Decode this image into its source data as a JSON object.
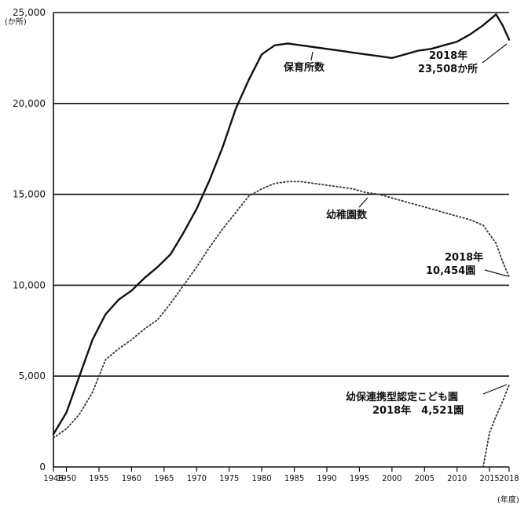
{
  "chart_data": {
    "type": "line",
    "y_unit": "(か所)",
    "x_unit": "(年度)",
    "ylim": [
      0,
      25000
    ],
    "xlim": [
      1948,
      2018
    ],
    "y_ticks": [
      "25,000",
      "20,000",
      "15,000",
      "10,000",
      "5,000",
      "0"
    ],
    "y_tick_values": [
      25000,
      20000,
      15000,
      10000,
      5000,
      0
    ],
    "x_ticks": [
      "1948",
      "1950",
      "1955",
      "1960",
      "1965",
      "1970",
      "1975",
      "1980",
      "1985",
      "1990",
      "1995",
      "2000",
      "2005",
      "2010",
      "2015",
      "2018"
    ],
    "x_tick_values": [
      1948,
      1950,
      1955,
      1960,
      1965,
      1970,
      1975,
      1980,
      1985,
      1990,
      1995,
      2000,
      2005,
      2010,
      2015,
      2018
    ],
    "grid": "horizontal",
    "series": [
      {
        "name": "保育所数",
        "style": "solid",
        "color": "#111111",
        "x": [
          1948,
          1950,
          1952,
          1954,
          1956,
          1958,
          1960,
          1962,
          1964,
          1966,
          1968,
          1970,
          1972,
          1974,
          1976,
          1978,
          1980,
          1982,
          1984,
          1986,
          1988,
          1990,
          1992,
          1994,
          1996,
          1998,
          2000,
          2002,
          2004,
          2006,
          2008,
          2010,
          2012,
          2014,
          2016,
          2017,
          2018
        ],
        "values": [
          1800,
          3000,
          5000,
          7000,
          8400,
          9200,
          9700,
          10400,
          11000,
          11700,
          12900,
          14200,
          15800,
          17600,
          19700,
          21300,
          22700,
          23200,
          23300,
          23200,
          23100,
          23000,
          22900,
          22800,
          22700,
          22600,
          22500,
          22700,
          22900,
          23000,
          23200,
          23400,
          23800,
          24300,
          24900,
          24300,
          23508
        ]
      },
      {
        "name": "幼稚園数",
        "style": "dotted",
        "color": "#333333",
        "x": [
          1948,
          1950,
          1952,
          1954,
          1956,
          1958,
          1960,
          1962,
          1964,
          1966,
          1968,
          1970,
          1972,
          1974,
          1976,
          1978,
          1980,
          1982,
          1984,
          1986,
          1988,
          1990,
          1992,
          1994,
          1996,
          1998,
          2000,
          2002,
          2004,
          2006,
          2008,
          2010,
          2012,
          2014,
          2016,
          2017,
          2018
        ],
        "values": [
          1600,
          2100,
          2900,
          4100,
          5900,
          6500,
          7000,
          7600,
          8100,
          9000,
          10000,
          11000,
          12100,
          13100,
          14000,
          14900,
          15300,
          15600,
          15700,
          15700,
          15600,
          15500,
          15400,
          15300,
          15100,
          15000,
          14800,
          14600,
          14400,
          14200,
          14000,
          13800,
          13600,
          13300,
          12300,
          11300,
          10454
        ]
      },
      {
        "name": "幼保連携型認定こども園",
        "style": "dotted",
        "color": "#333333",
        "x": [
          2014,
          2015,
          2016,
          2017,
          2018
        ],
        "values": [
          0,
          1900,
          2800,
          3600,
          4521
        ]
      }
    ],
    "annotations": [
      {
        "id": "hoikusho-name",
        "text": "保育所数"
      },
      {
        "id": "hoikusho-2018",
        "line1": "2018年",
        "line2": "23,508か所"
      },
      {
        "id": "yochien-name",
        "text": "幼稚園数"
      },
      {
        "id": "yochien-2018",
        "line1": "2018年",
        "line2": "10,454園"
      },
      {
        "id": "kodomoen-name",
        "text": "幼保連携型認定こども園"
      },
      {
        "id": "kodomoen-2018",
        "text": "2018年　4,521園"
      }
    ]
  }
}
